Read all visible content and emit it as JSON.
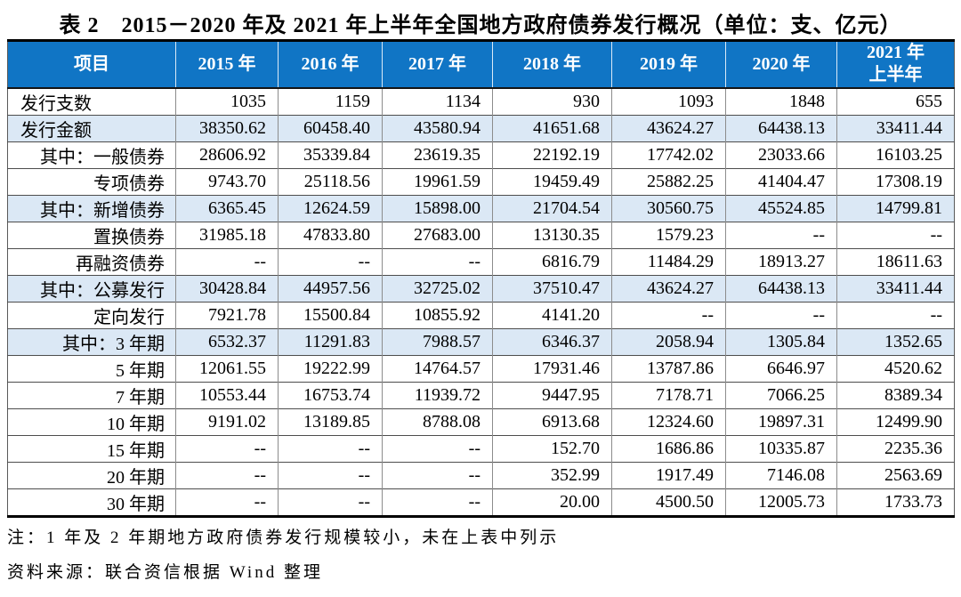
{
  "title": "表 2　2015－2020 年及 2021 年上半年全国地方政府债券发行概况（单位：支、亿元）",
  "colors": {
    "header_bg": "#1075C5",
    "header_text": "#FFFFFF",
    "row_shade": "#DBE8F5"
  },
  "table": {
    "columns": [
      {
        "label": "项目"
      },
      {
        "label": "2015 年"
      },
      {
        "label": "2016 年"
      },
      {
        "label": "2017 年"
      },
      {
        "label": "2018 年"
      },
      {
        "label": "2019 年"
      },
      {
        "label": "2020 年"
      },
      {
        "label": "2021 年",
        "line2": "上半年"
      }
    ],
    "rows": [
      {
        "label": "发行支数",
        "align": "left",
        "shaded": false,
        "values": [
          "1035",
          "1159",
          "1134",
          "930",
          "1093",
          "1848",
          "655"
        ]
      },
      {
        "label": "发行金额",
        "align": "left",
        "shaded": true,
        "values": [
          "38350.62",
          "60458.40",
          "43580.94",
          "41651.68",
          "43624.27",
          "64438.13",
          "33411.44"
        ]
      },
      {
        "label": "其中：一般债券",
        "align": "right",
        "shaded": false,
        "values": [
          "28606.92",
          "35339.84",
          "23619.35",
          "22192.19",
          "17742.02",
          "23033.66",
          "16103.25"
        ]
      },
      {
        "label": "专项债券",
        "align": "right",
        "shaded": false,
        "values": [
          "9743.70",
          "25118.56",
          "19961.59",
          "19459.49",
          "25882.25",
          "41404.47",
          "17308.19"
        ]
      },
      {
        "label": "其中：新增债券",
        "align": "right",
        "shaded": true,
        "values": [
          "6365.45",
          "12624.59",
          "15898.00",
          "21704.54",
          "30560.75",
          "45524.85",
          "14799.81"
        ]
      },
      {
        "label": "置换债券",
        "align": "right",
        "shaded": false,
        "values": [
          "31985.18",
          "47833.80",
          "27683.00",
          "13130.35",
          "1579.23",
          "--",
          "--"
        ]
      },
      {
        "label": "再融资债券",
        "align": "right",
        "shaded": false,
        "values": [
          "--",
          "--",
          "--",
          "6816.79",
          "11484.29",
          "18913.27",
          "18611.63"
        ]
      },
      {
        "label": "其中：公募发行",
        "align": "right",
        "shaded": true,
        "values": [
          "30428.84",
          "44957.56",
          "32725.02",
          "37510.47",
          "43624.27",
          "64438.13",
          "33411.44"
        ]
      },
      {
        "label": "定向发行",
        "align": "right",
        "shaded": false,
        "values": [
          "7921.78",
          "15500.84",
          "10855.92",
          "4141.20",
          "--",
          "--",
          "--"
        ]
      },
      {
        "label": "其中：3 年期",
        "align": "right",
        "shaded": true,
        "values": [
          "6532.37",
          "11291.83",
          "7988.57",
          "6346.37",
          "2058.94",
          "1305.84",
          "1352.65"
        ]
      },
      {
        "label": "5 年期",
        "align": "right",
        "shaded": false,
        "values": [
          "12061.55",
          "19222.99",
          "14764.57",
          "17931.46",
          "13787.86",
          "6646.97",
          "4520.62"
        ]
      },
      {
        "label": "7 年期",
        "align": "right",
        "shaded": false,
        "values": [
          "10553.44",
          "16753.74",
          "11939.72",
          "9447.95",
          "7178.71",
          "7066.25",
          "8389.34"
        ]
      },
      {
        "label": "10 年期",
        "align": "right",
        "shaded": false,
        "values": [
          "9191.02",
          "13189.85",
          "8788.08",
          "6913.68",
          "12324.60",
          "19897.31",
          "12499.90"
        ]
      },
      {
        "label": "15 年期",
        "align": "right",
        "shaded": false,
        "values": [
          "--",
          "--",
          "--",
          "152.70",
          "1686.86",
          "10335.87",
          "2235.36"
        ]
      },
      {
        "label": "20 年期",
        "align": "right",
        "shaded": false,
        "values": [
          "--",
          "--",
          "--",
          "352.99",
          "1917.49",
          "7146.08",
          "2563.69"
        ]
      },
      {
        "label": "30 年期",
        "align": "right",
        "shaded": false,
        "values": [
          "--",
          "--",
          "--",
          "20.00",
          "4500.50",
          "12005.73",
          "1733.73"
        ]
      }
    ]
  },
  "notes": {
    "footnote": "注：1 年及 2 年期地方政府债券发行规模较小，未在上表中列示",
    "source": "资料来源：联合资信根据 Wind 整理"
  }
}
